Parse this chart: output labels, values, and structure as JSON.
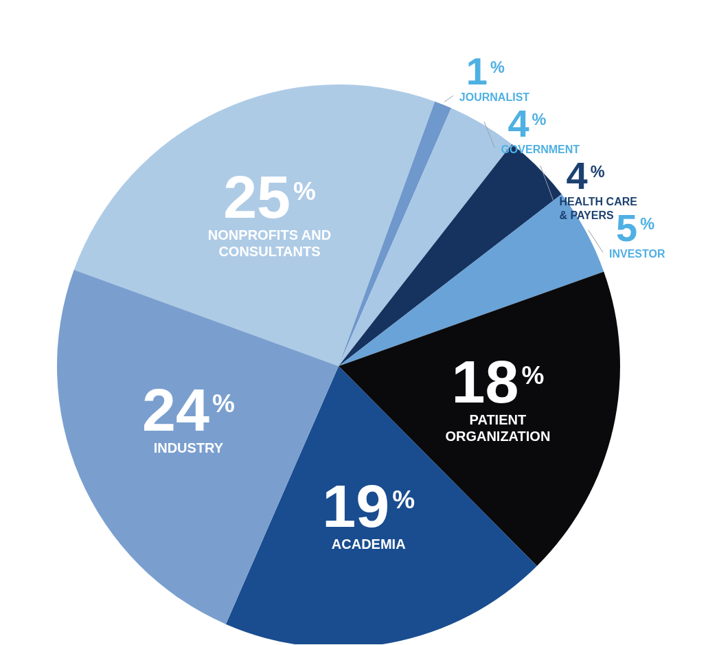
{
  "chart_data": {
    "type": "pie",
    "categories": [
      "NONPROFITS AND CONSULTANTS",
      "JOURNALIST",
      "GOVERNMENT",
      "HEALTH CARE & PAYERS",
      "INVESTOR",
      "PATIENT ORGANIZATION",
      "ACADEMIA",
      "INDUSTRY"
    ],
    "values": [
      25,
      1,
      4,
      4,
      5,
      18,
      19,
      24
    ],
    "colors": [
      "#aecbe6",
      "#6f98cc",
      "#a9c8e6",
      "#16335f",
      "#6aa3d8",
      "#0a0a0d",
      "#1a4d8f",
      "#7a9fcf"
    ],
    "value_labels": [
      "25%",
      "1%",
      "4%",
      "4%",
      "5%",
      "18%",
      "19%",
      "24%"
    ]
  }
}
